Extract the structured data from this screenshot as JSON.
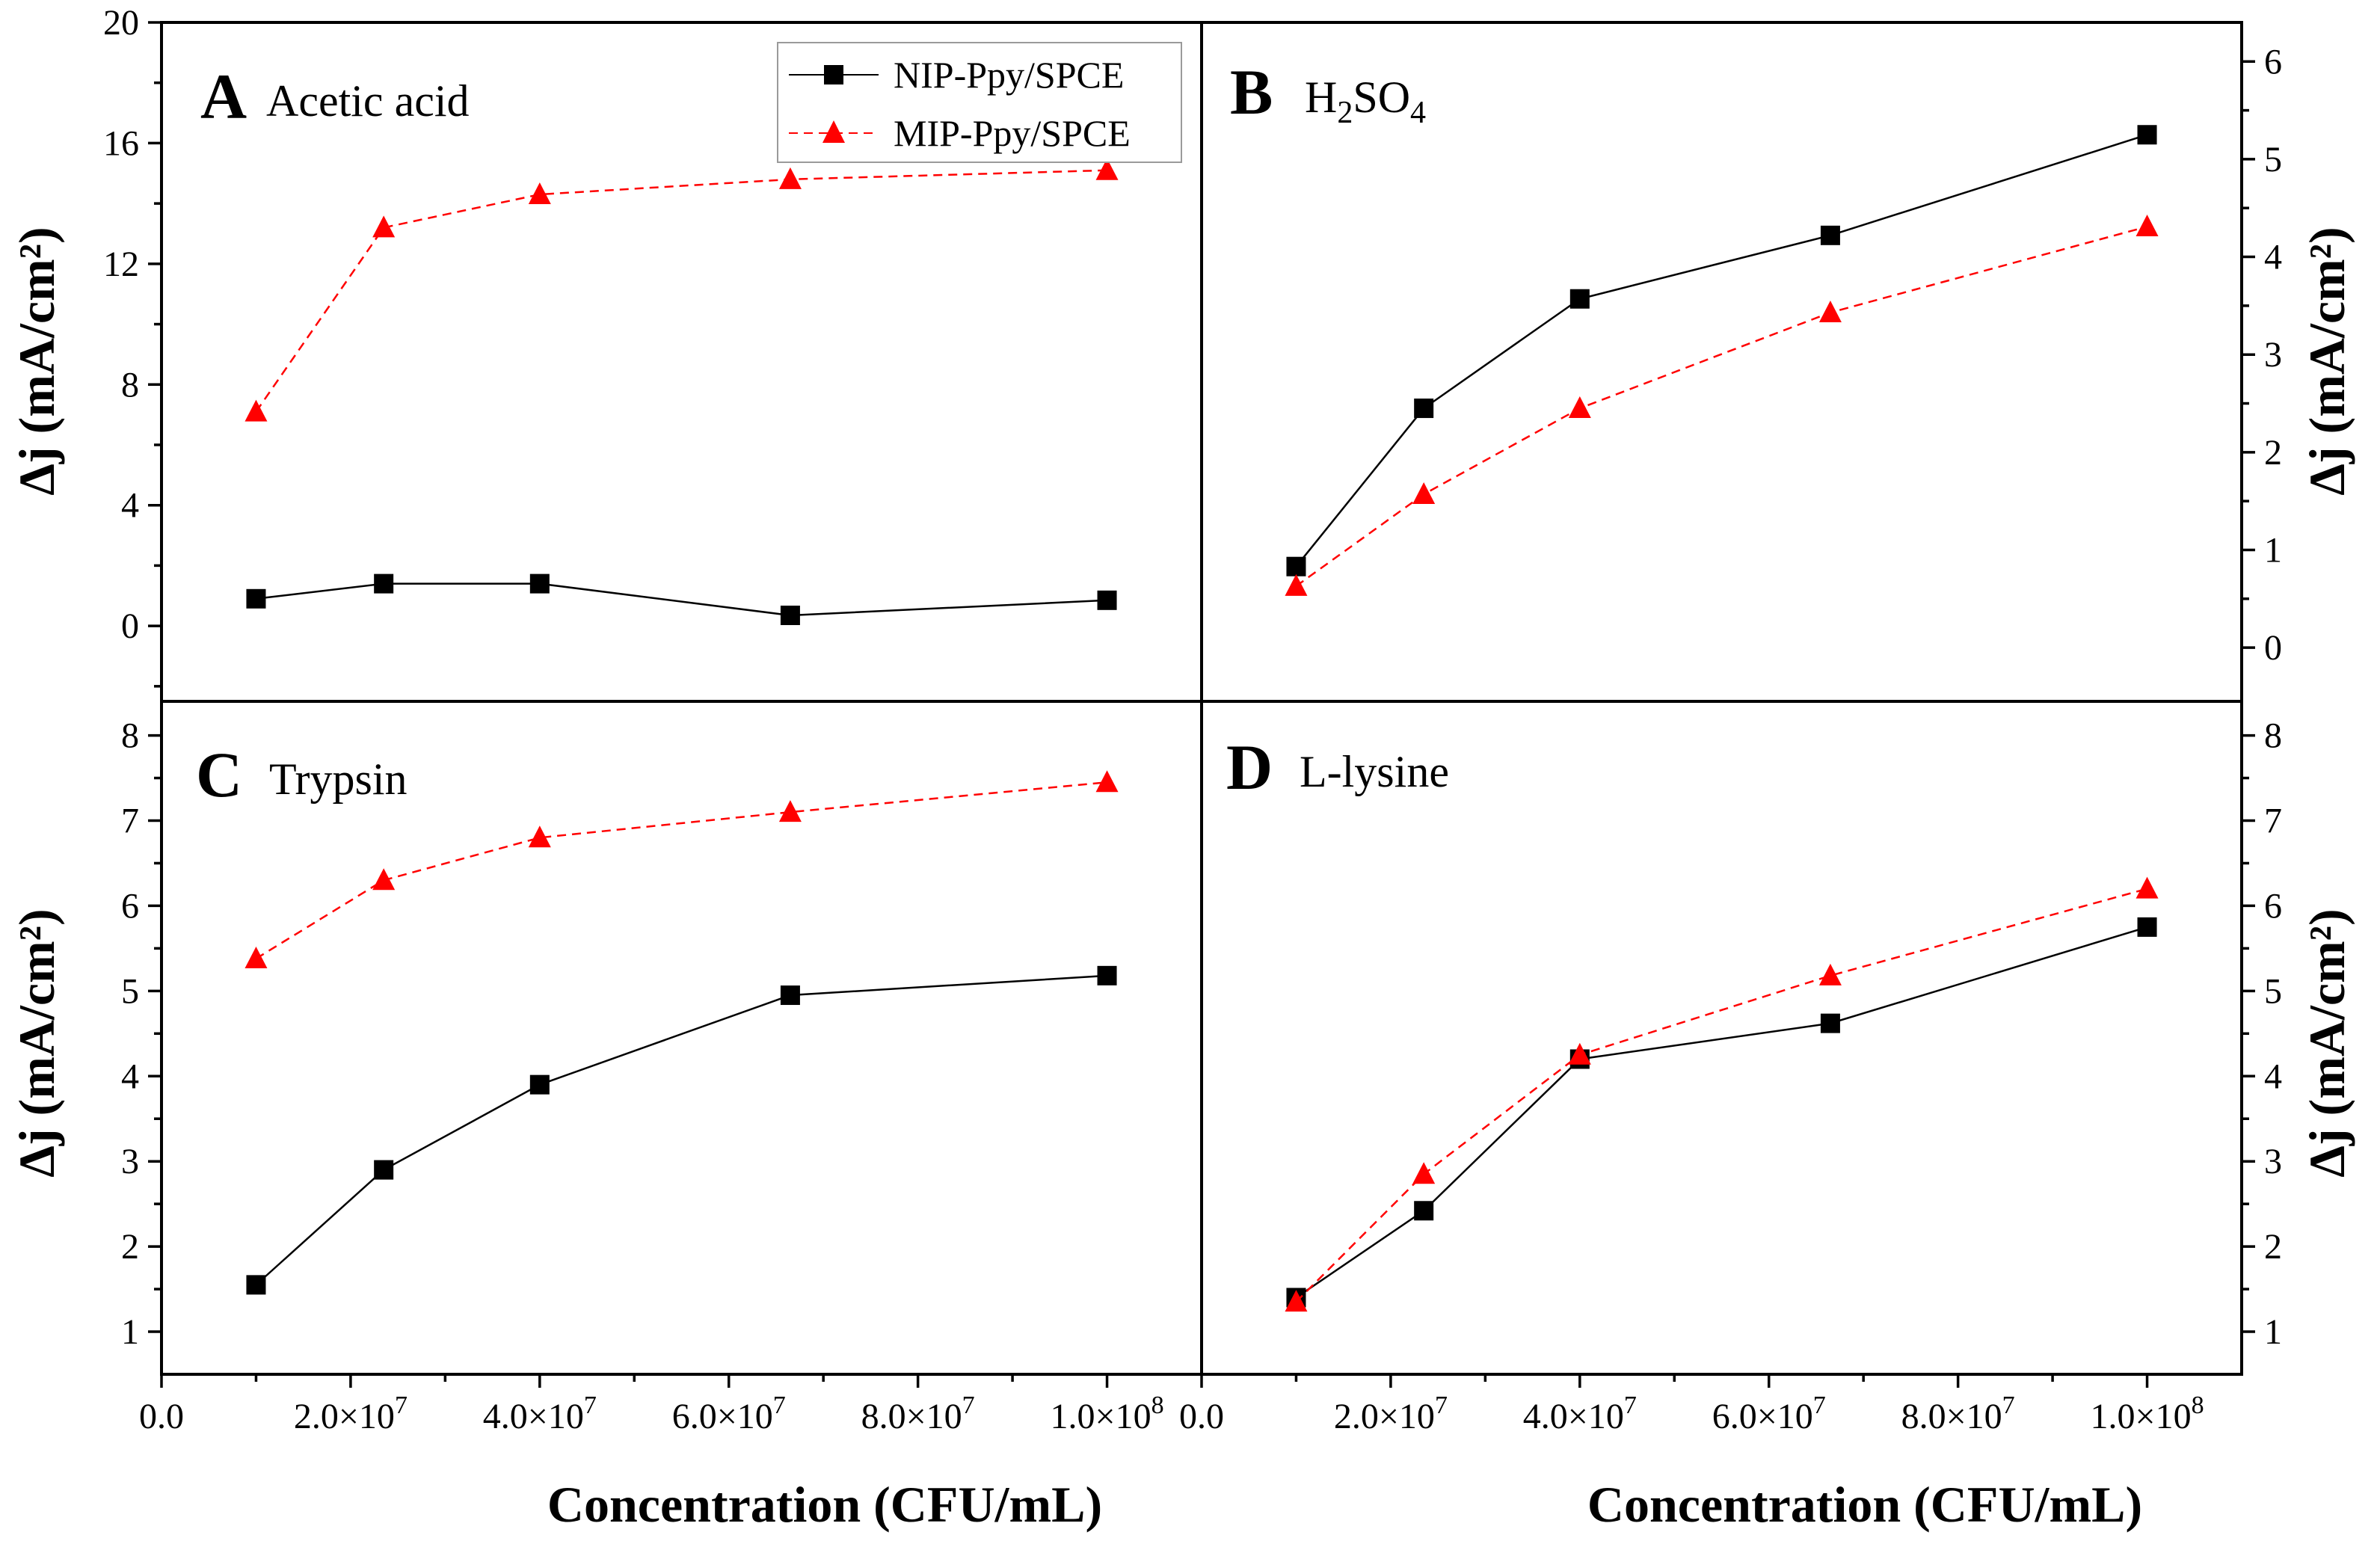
{
  "figure": {
    "xlabel": "Concentration (CFU/mL)",
    "ylabel": "Δj (mA/cm²)",
    "legend": {
      "nip": "NIP-Ppy/SPCE",
      "mip": "MIP-Ppy/SPCE"
    },
    "colors": {
      "nip": "#000000",
      "mip": "#ff0000"
    }
  },
  "chart_data": [
    {
      "id": "A",
      "type": "line",
      "letter": "A",
      "name": "Acetic acid",
      "y_side": "left",
      "xlim": [
        0,
        110000000
      ],
      "ylim": [
        -2.5,
        20
      ],
      "yticks_major": [
        "0",
        "4",
        "8",
        "12",
        "16",
        "20"
      ],
      "yticks_major_values": [
        0,
        4,
        8,
        12,
        16,
        20
      ],
      "yticks_minor_values": [
        -2,
        2,
        6,
        10,
        14,
        18
      ],
      "x": [
        10000000,
        23500000,
        40000000,
        66500000,
        100000000
      ],
      "series": [
        {
          "name": "NIP-Ppy/SPCE",
          "key": "nip",
          "values": [
            0.9,
            1.4,
            1.4,
            0.35,
            0.85
          ]
        },
        {
          "name": "MIP-Ppy/SPCE",
          "key": "mip",
          "values": [
            7.1,
            13.2,
            14.3,
            14.8,
            15.1
          ]
        }
      ]
    },
    {
      "id": "B",
      "type": "line",
      "letter": "B",
      "name": "H₂SO₄",
      "name_main": "H",
      "name_sub1": "2",
      "name_mid": "SO",
      "name_sub2": "4",
      "y_side": "right",
      "xlim": [
        0,
        110000000
      ],
      "ylim": [
        -0.55,
        6.4
      ],
      "yticks_major": [
        "0",
        "1",
        "2",
        "3",
        "4",
        "5",
        "6"
      ],
      "yticks_major_values": [
        0,
        1,
        2,
        3,
        4,
        5,
        6
      ],
      "yticks_minor_values": [
        0.5,
        1.5,
        2.5,
        3.5,
        4.5,
        5.5
      ],
      "x": [
        10000000,
        23500000,
        40000000,
        66500000,
        100000000
      ],
      "series": [
        {
          "name": "NIP-Ppy/SPCE",
          "key": "nip",
          "values": [
            0.83,
            2.45,
            3.57,
            4.22,
            5.25
          ]
        },
        {
          "name": "MIP-Ppy/SPCE",
          "key": "mip",
          "values": [
            0.63,
            1.57,
            2.45,
            3.43,
            4.31
          ]
        }
      ]
    },
    {
      "id": "C",
      "type": "line",
      "letter": "C",
      "name": "Trypsin",
      "y_side": "left",
      "xlim": [
        0,
        110000000
      ],
      "ylim": [
        0.5,
        8.4
      ],
      "yticks_major": [
        "1",
        "2",
        "3",
        "4",
        "5",
        "6",
        "7",
        "8"
      ],
      "yticks_major_values": [
        1,
        2,
        3,
        4,
        5,
        6,
        7,
        8
      ],
      "yticks_minor_values": [
        1.5,
        2.5,
        3.5,
        4.5,
        5.5,
        6.5,
        7.5
      ],
      "x": [
        10000000,
        23500000,
        40000000,
        66500000,
        100000000
      ],
      "series": [
        {
          "name": "NIP-Ppy/SPCE",
          "key": "nip",
          "values": [
            1.55,
            2.9,
            3.9,
            4.95,
            5.18
          ]
        },
        {
          "name": "MIP-Ppy/SPCE",
          "key": "mip",
          "values": [
            5.38,
            6.3,
            6.8,
            7.1,
            7.45
          ]
        }
      ]
    },
    {
      "id": "D",
      "type": "line",
      "letter": "D",
      "name": "L-lysine",
      "y_side": "right",
      "xlim": [
        0,
        110000000
      ],
      "ylim": [
        0.5,
        8.4
      ],
      "yticks_major": [
        "1",
        "2",
        "3",
        "4",
        "5",
        "6",
        "7",
        "8"
      ],
      "yticks_major_values": [
        1,
        2,
        3,
        4,
        5,
        6,
        7,
        8
      ],
      "yticks_minor_values": [
        1.5,
        2.5,
        3.5,
        4.5,
        5.5,
        6.5,
        7.5
      ],
      "x": [
        10000000,
        23500000,
        40000000,
        66500000,
        100000000
      ],
      "series": [
        {
          "name": "NIP-Ppy/SPCE",
          "key": "nip",
          "values": [
            1.4,
            2.42,
            4.2,
            4.62,
            5.75
          ]
        },
        {
          "name": "MIP-Ppy/SPCE",
          "key": "mip",
          "values": [
            1.35,
            2.85,
            4.25,
            5.18,
            6.2
          ]
        }
      ]
    }
  ],
  "x_axis": {
    "tick_values": [
      0,
      20000000,
      40000000,
      60000000,
      80000000,
      100000000
    ],
    "minor_values": [
      10000000,
      30000000,
      50000000,
      70000000,
      90000000
    ],
    "ticks": [
      {
        "mantissa": "0.0",
        "exp": ""
      },
      {
        "mantissa": "2.0×10",
        "exp": "7"
      },
      {
        "mantissa": "4.0×10",
        "exp": "7"
      },
      {
        "mantissa": "6.0×10",
        "exp": "7"
      },
      {
        "mantissa": "8.0×10",
        "exp": "7"
      },
      {
        "mantissa": "1.0×10",
        "exp": "8"
      }
    ]
  }
}
